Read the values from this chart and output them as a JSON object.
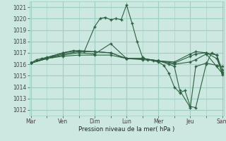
{
  "xlabel": "Pression niveau de la mer( hPa )",
  "bg_color": "#cce8e0",
  "grid_color": "#9ecfc4",
  "line_color": "#2d6040",
  "ylim": [
    1011.5,
    1021.5
  ],
  "xlim": [
    -0.05,
    6.05
  ],
  "day_labels": [
    "Mar",
    "Ven",
    "Dim",
    "Lun",
    "Mer",
    "Jeu",
    "Sam"
  ],
  "day_positions": [
    0,
    1,
    2,
    3,
    4,
    5,
    6
  ],
  "yticks": [
    1012,
    1013,
    1014,
    1015,
    1016,
    1017,
    1018,
    1019,
    1020,
    1021
  ],
  "lines": [
    {
      "x": [
        0.0,
        0.17,
        0.33,
        0.67,
        1.0,
        1.33,
        1.67,
        2.0,
        2.17,
        2.33,
        2.5,
        2.67,
        2.83,
        3.0,
        3.17,
        3.33,
        3.5,
        3.67,
        3.83,
        4.0,
        4.17,
        4.33,
        4.5,
        4.67,
        4.83,
        5.0,
        5.17,
        5.5,
        5.67,
        5.83,
        6.0
      ],
      "y": [
        1016.1,
        1016.4,
        1016.5,
        1016.7,
        1017.0,
        1017.2,
        1017.1,
        1019.3,
        1020.0,
        1020.1,
        1019.9,
        1020.0,
        1019.9,
        1021.2,
        1019.6,
        1018.0,
        1016.6,
        1016.4,
        1016.3,
        1016.2,
        1015.9,
        1015.2,
        1014.0,
        1013.5,
        1013.7,
        1012.3,
        1012.2,
        1016.0,
        1017.0,
        1016.8,
        1015.1
      ]
    },
    {
      "x": [
        0.0,
        0.5,
        1.0,
        1.5,
        2.0,
        2.5,
        3.0,
        3.5,
        4.0,
        4.5,
        5.0,
        5.17,
        5.5,
        5.83,
        6.0
      ],
      "y": [
        1016.1,
        1016.5,
        1016.7,
        1016.8,
        1016.8,
        1016.8,
        1016.5,
        1016.4,
        1016.3,
        1016.1,
        1016.7,
        1016.9,
        1017.0,
        1016.8,
        1015.5
      ]
    },
    {
      "x": [
        0.0,
        0.5,
        1.0,
        1.5,
        2.0,
        2.5,
        3.0,
        3.5,
        4.0,
        4.5,
        5.0,
        5.17,
        5.5,
        5.83,
        6.0
      ],
      "y": [
        1016.1,
        1016.5,
        1016.8,
        1017.0,
        1016.9,
        1017.8,
        1016.5,
        1016.5,
        1016.3,
        1016.0,
        1016.2,
        1016.4,
        1016.9,
        1015.8,
        1015.2
      ]
    },
    {
      "x": [
        0.0,
        0.5,
        1.0,
        1.5,
        2.0,
        2.5,
        3.0,
        3.5,
        4.0,
        4.5,
        5.0,
        5.17,
        5.5,
        5.83,
        6.0
      ],
      "y": [
        1016.1,
        1016.5,
        1016.9,
        1017.1,
        1017.1,
        1017.0,
        1016.5,
        1016.5,
        1016.3,
        1016.2,
        1016.9,
        1017.1,
        1017.0,
        1016.5,
        1015.3
      ]
    },
    {
      "x": [
        0.0,
        0.5,
        1.0,
        1.5,
        2.0,
        2.5,
        3.0,
        3.5,
        4.0,
        4.33,
        4.5,
        4.67,
        5.0,
        5.17,
        5.5,
        5.83,
        6.0
      ],
      "y": [
        1016.1,
        1016.6,
        1017.0,
        1017.2,
        1017.1,
        1017.0,
        1016.5,
        1016.5,
        1016.3,
        1016.0,
        1015.8,
        1013.7,
        1012.2,
        1015.8,
        1016.1,
        1015.9,
        1015.8
      ]
    }
  ]
}
